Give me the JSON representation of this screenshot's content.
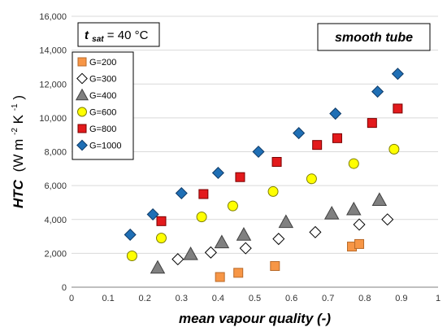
{
  "chart_data": {
    "type": "scatter",
    "xlabel": "mean vapour quality (-)",
    "ylabel": {
      "base": "HTC",
      "units": "(W m",
      "exp1": "-2",
      "mid": " K",
      "exp2": "-1",
      "close": ")"
    },
    "xlim": [
      0,
      1
    ],
    "ylim": [
      0,
      16000
    ],
    "x_ticks": [
      "0",
      "0.1",
      "0.2",
      "0.3",
      "0.4",
      "0.5",
      "0.6",
      "0.7",
      "0.8",
      "0.9",
      "1"
    ],
    "y_ticks": [
      "0",
      "2,000",
      "4,000",
      "6,000",
      "8,000",
      "10,000",
      "12,000",
      "14,000",
      "16,000"
    ],
    "grid": "horizontal",
    "legend_position": "top-left",
    "annotations": {
      "tsat": {
        "symbol": "t",
        "subscript": "sat",
        "value": " = 40 °C"
      },
      "tube": "smooth tube"
    },
    "series": [
      {
        "name": "G=200",
        "marker": "square",
        "color": "#F79646",
        "stroke": "#B86A2A",
        "points": [
          [
            0.405,
            600
          ],
          [
            0.455,
            850
          ],
          [
            0.555,
            1250
          ],
          [
            0.765,
            2400
          ],
          [
            0.785,
            2550
          ]
        ]
      },
      {
        "name": "G=300",
        "marker": "diamond",
        "color": "#FFFFFF",
        "stroke": "#000000",
        "points": [
          [
            0.29,
            1650
          ],
          [
            0.38,
            2050
          ],
          [
            0.475,
            2300
          ],
          [
            0.565,
            2850
          ],
          [
            0.665,
            3250
          ],
          [
            0.785,
            3700
          ],
          [
            0.862,
            4000
          ]
        ]
      },
      {
        "name": "G=400",
        "marker": "triangle",
        "color": "#808080",
        "stroke": "#404040",
        "points": [
          [
            0.235,
            1150
          ],
          [
            0.325,
            1950
          ],
          [
            0.41,
            2650
          ],
          [
            0.47,
            3100
          ],
          [
            0.585,
            3850
          ],
          [
            0.71,
            4350
          ],
          [
            0.77,
            4600
          ],
          [
            0.84,
            5150
          ]
        ]
      },
      {
        "name": "G=600",
        "marker": "circle",
        "color": "#FFFF00",
        "stroke": "#7F7F00",
        "points": [
          [
            0.165,
            1850
          ],
          [
            0.245,
            2900
          ],
          [
            0.355,
            4150
          ],
          [
            0.44,
            4800
          ],
          [
            0.55,
            5650
          ],
          [
            0.655,
            6400
          ],
          [
            0.77,
            7300
          ],
          [
            0.88,
            8150
          ]
        ]
      },
      {
        "name": "G=800",
        "marker": "square",
        "color": "#E31A1C",
        "stroke": "#7A0000",
        "points": [
          [
            0.245,
            3900
          ],
          [
            0.36,
            5500
          ],
          [
            0.46,
            6500
          ],
          [
            0.56,
            7400
          ],
          [
            0.67,
            8400
          ],
          [
            0.725,
            8800
          ],
          [
            0.82,
            9700
          ],
          [
            0.89,
            10550
          ]
        ]
      },
      {
        "name": "G=1000",
        "marker": "diamond",
        "color": "#1F6FB5",
        "stroke": "#0F3A66",
        "points": [
          [
            0.16,
            3100
          ],
          [
            0.222,
            4300
          ],
          [
            0.3,
            5550
          ],
          [
            0.4,
            6750
          ],
          [
            0.51,
            8000
          ],
          [
            0.62,
            9100
          ],
          [
            0.72,
            10250
          ],
          [
            0.835,
            11550
          ],
          [
            0.89,
            12600
          ]
        ]
      }
    ]
  }
}
